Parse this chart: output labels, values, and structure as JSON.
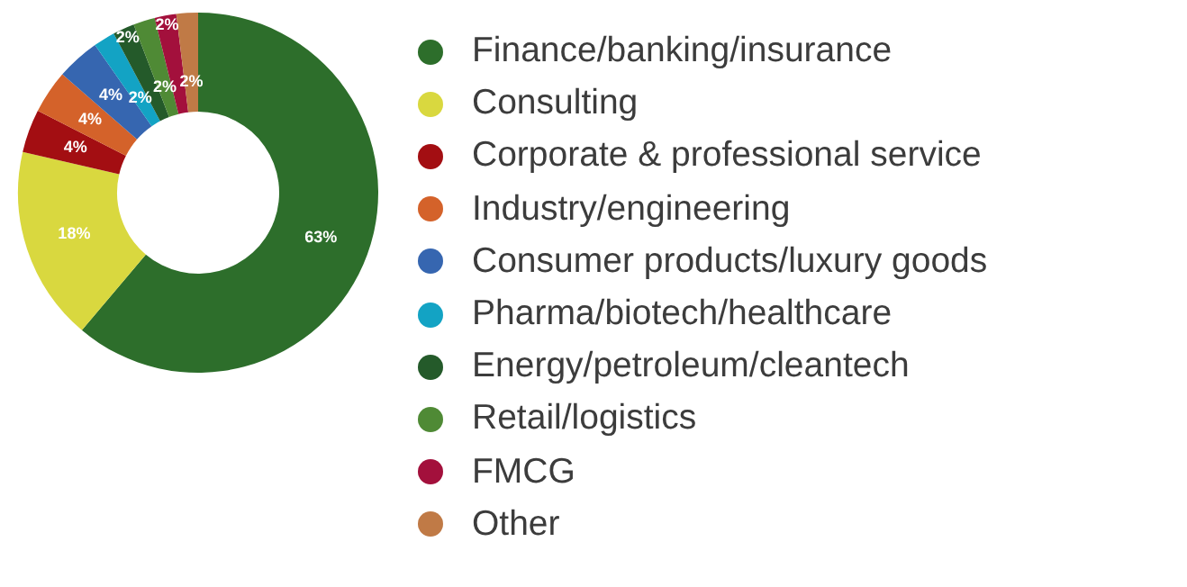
{
  "chart_data": {
    "type": "donut",
    "categories": [
      "Finance/banking/insurance",
      "Consulting",
      "Corporate & professional service",
      "Industry/engineering",
      "Consumer products/luxury goods",
      "Pharma/biotech/healthcare",
      "Energy/petroleum/cleantech",
      "Retail/logistics",
      "FMCG",
      "Other"
    ],
    "values": [
      63,
      18,
      4,
      4,
      4,
      2,
      2,
      2,
      2,
      2
    ],
    "value_labels": [
      "63%",
      "18%",
      "4%",
      "4%",
      "4%",
      "2%",
      "2%",
      "2%",
      "2%",
      "2%"
    ],
    "colors": [
      "#2d6e2b",
      "#d9d83f",
      "#a30e12",
      "#d4622a",
      "#3666b0",
      "#13a3c4",
      "#245a2a",
      "#4f8a35",
      "#a3103c",
      "#c07a46"
    ],
    "legend": "right"
  }
}
